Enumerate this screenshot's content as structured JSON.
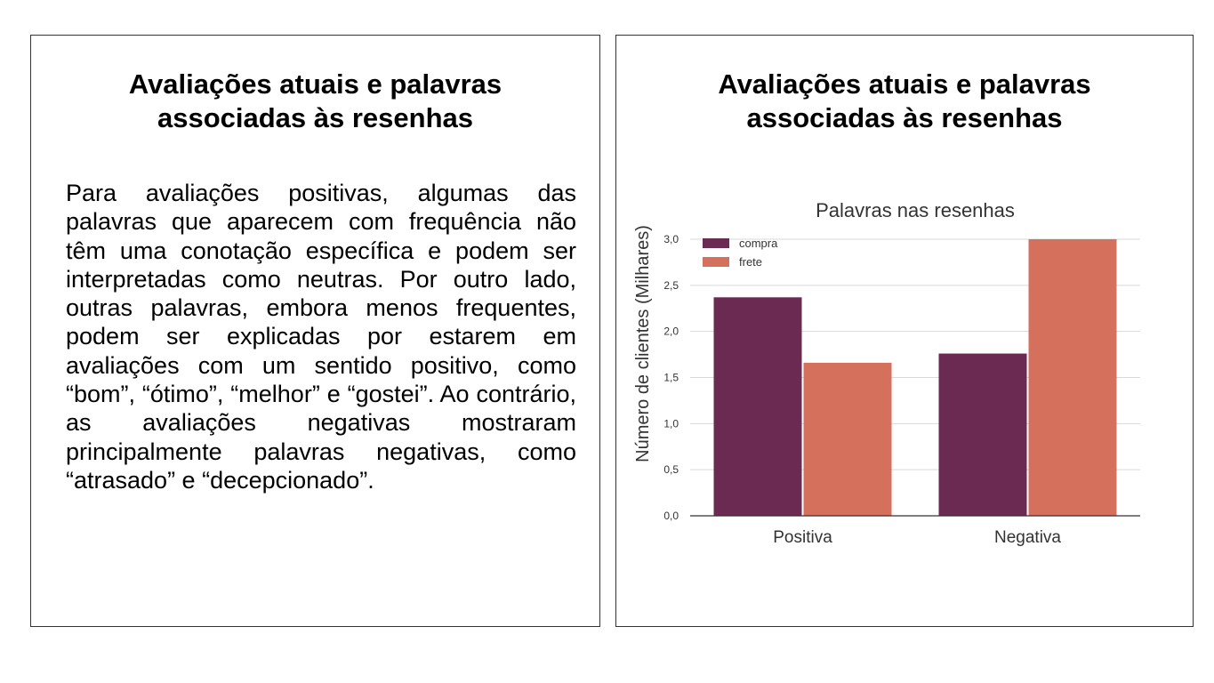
{
  "left_panel": {
    "title_lines": [
      "Avaliações atuais e palavras",
      "associadas às resenhas"
    ],
    "body": "Para avaliações positivas, algumas das palavras que aparecem com frequência não têm uma conotação específica e podem ser interpretadas como neutras. Por outro lado, outras palavras, embora menos frequentes, podem ser explicadas por estarem em avaliações com um sentido positivo, como “bom”, “ótimo”, “melhor” e “gostei”. Ao contrário, as avaliações negativas mostraram principalmente palavras negativas, como “atrasado” e “decepcionado”."
  },
  "right_panel": {
    "title_lines": [
      "Avaliações atuais e palavras",
      "associadas às resenhas"
    ]
  },
  "chart_data": {
    "type": "bar",
    "title": "Palavras nas resenhas",
    "xlabel": "",
    "ylabel": "Número de clientes (Milhares)",
    "categories": [
      "Positiva",
      "Negativa"
    ],
    "series": [
      {
        "name": "compra",
        "color": "#6b2a52",
        "values": [
          2.37,
          1.76
        ]
      },
      {
        "name": "frete",
        "color": "#d4705c",
        "values": [
          1.66,
          3.0
        ]
      }
    ],
    "ylim": [
      0,
      3.0
    ],
    "yticks": [
      "0,0",
      "0,5",
      "1,0",
      "1,5",
      "2,0",
      "2,5",
      "3,0"
    ],
    "ytick_values": [
      0,
      0.5,
      1.0,
      1.5,
      2.0,
      2.5,
      3.0
    ],
    "grid": true,
    "legend_position": "top-left"
  }
}
